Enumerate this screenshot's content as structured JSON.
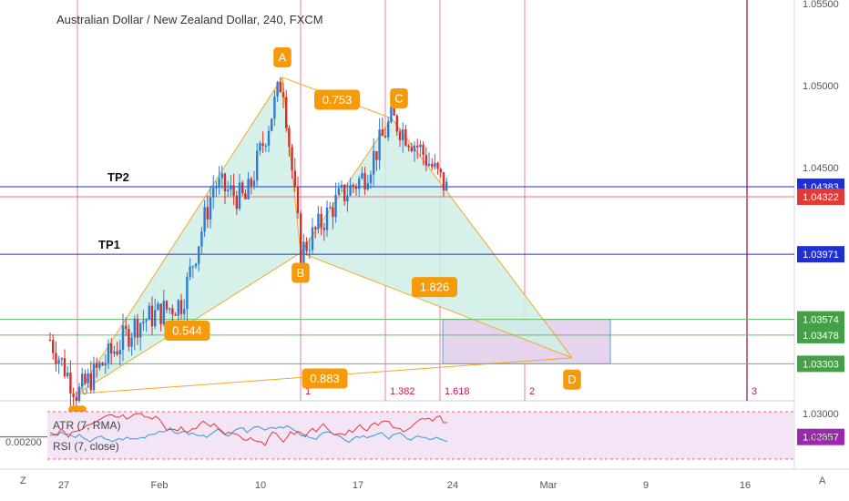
{
  "title": "Australian Dollar / New Zealand Dollar, 240, FXCM",
  "price_axis": {
    "ticks": [
      "1.05500",
      "1.05000",
      "1.04500",
      "1.03000"
    ],
    "tick_values": [
      1.055,
      1.05,
      1.045,
      1.03
    ],
    "badges": [
      {
        "text": "1.04383",
        "value": 1.04383,
        "color": "#1e2fd6"
      },
      {
        "text": "1.04322",
        "value": 1.04322,
        "color": "#e53935"
      },
      {
        "text": "1.03971",
        "value": 1.03971,
        "color": "#1e2fd6"
      },
      {
        "text": "1.03574",
        "value": 1.03574,
        "color": "#43a047"
      },
      {
        "text": "1.03478",
        "value": 1.03478,
        "color": "#43a047"
      },
      {
        "text": "1.03303",
        "value": 1.03303,
        "color": "#43a047"
      },
      {
        "text": "1.02857",
        "value": 1.02857,
        "color": "#9c27b0"
      }
    ]
  },
  "time_axis": {
    "labels": [
      "27",
      "Feb",
      "10",
      "17",
      "24",
      "Mar",
      "9",
      "16"
    ]
  },
  "lines": {
    "tp2": {
      "label": "TP2",
      "value": 1.04383
    },
    "tp1": {
      "label": "TP1",
      "value": 1.03971
    }
  },
  "pattern": {
    "points": [
      {
        "label": "X",
        "value": 1.0312
      },
      {
        "label": "A",
        "value": 1.0505
      },
      {
        "label": "B",
        "value": 1.0398
      },
      {
        "label": "C",
        "value": 1.048
      },
      {
        "label": "D",
        "value": 1.0334
      }
    ],
    "ratios": [
      "0.544",
      "0.753",
      "1.826",
      "0.883"
    ]
  },
  "fib_time": [
    "0",
    "1",
    "1.382",
    "1.618",
    "2",
    "3"
  ],
  "indicator": {
    "value_label": "0.00200",
    "right_label": "50.00",
    "atr_label": "ATR (7, RMA)",
    "rsi_label": "RSI (7, close)"
  },
  "corners": {
    "left": "Z",
    "right": "A"
  },
  "colors": {
    "pattern_fill": "#cfeee6",
    "pattern_line": "#f5a623",
    "label_bg": "#f59b0b",
    "fib_line": "#e57399",
    "rsi": "#e53935",
    "atr": "#2e9bd6",
    "box_fill": "#e6d4ef"
  }
}
